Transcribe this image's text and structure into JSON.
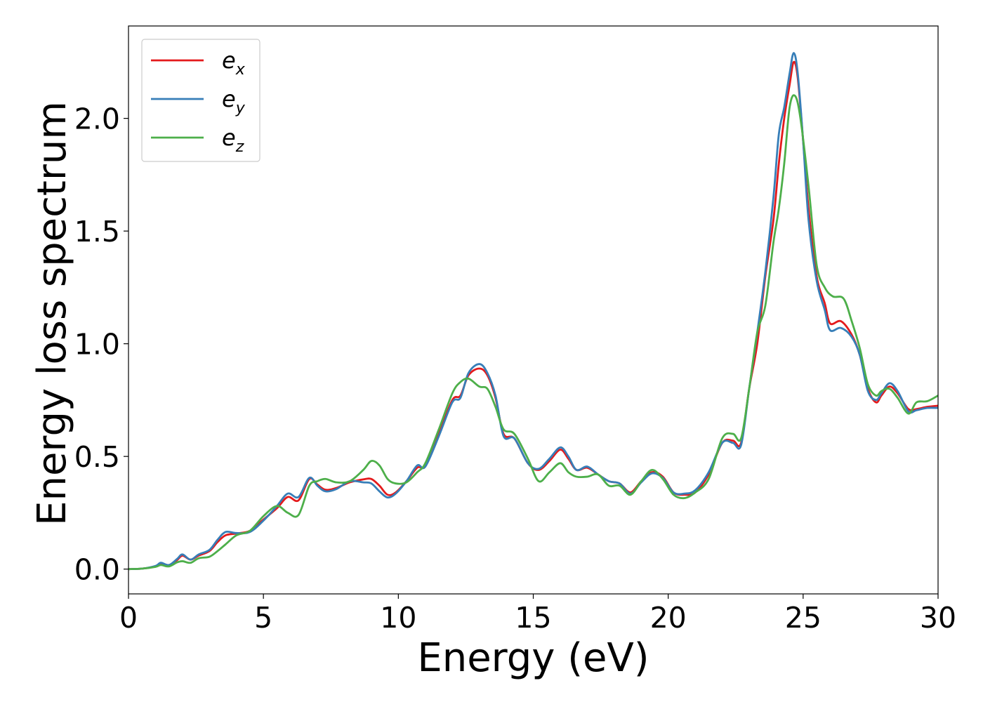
{
  "chart_data": {
    "type": "line",
    "title": "",
    "xlabel": "Energy (eV)",
    "ylabel": "Energy loss spectrum",
    "xlim": [
      0,
      30
    ],
    "ylim": [
      -0.11,
      2.41
    ],
    "xticks": [
      0,
      5,
      10,
      15,
      20,
      25,
      30
    ],
    "xtick_labels": [
      "0",
      "5",
      "10",
      "15",
      "20",
      "25",
      "30"
    ],
    "yticks": [
      0.0,
      0.5,
      1.0,
      1.5,
      2.0
    ],
    "ytick_labels": [
      "0.0",
      "0.5",
      "1.0",
      "1.5",
      "2.0"
    ],
    "grid": false,
    "legend_position": "top-left",
    "series": [
      {
        "name": "e",
        "subscript": "x",
        "color": "#e41a1c",
        "points": [
          [
            0,
            0
          ],
          [
            0.5,
            0.002
          ],
          [
            1.0,
            0.012
          ],
          [
            1.2,
            0.025
          ],
          [
            1.5,
            0.018
          ],
          [
            1.8,
            0.04
          ],
          [
            2.0,
            0.06
          ],
          [
            2.3,
            0.042
          ],
          [
            2.6,
            0.06
          ],
          [
            3.0,
            0.08
          ],
          [
            3.3,
            0.12
          ],
          [
            3.6,
            0.15
          ],
          [
            4.0,
            0.158
          ],
          [
            4.5,
            0.17
          ],
          [
            5.0,
            0.22
          ],
          [
            5.5,
            0.27
          ],
          [
            5.9,
            0.32
          ],
          [
            6.3,
            0.305
          ],
          [
            6.7,
            0.4
          ],
          [
            7.0,
            0.375
          ],
          [
            7.3,
            0.352
          ],
          [
            7.7,
            0.36
          ],
          [
            8.2,
            0.385
          ],
          [
            8.7,
            0.398
          ],
          [
            9.0,
            0.4
          ],
          [
            9.3,
            0.37
          ],
          [
            9.6,
            0.33
          ],
          [
            9.9,
            0.34
          ],
          [
            10.3,
            0.39
          ],
          [
            10.7,
            0.45
          ],
          [
            11.0,
            0.46
          ],
          [
            11.5,
            0.6
          ],
          [
            12.0,
            0.75
          ],
          [
            12.3,
            0.77
          ],
          [
            12.6,
            0.86
          ],
          [
            13.0,
            0.89
          ],
          [
            13.3,
            0.86
          ],
          [
            13.6,
            0.76
          ],
          [
            13.9,
            0.6
          ],
          [
            14.3,
            0.58
          ],
          [
            14.8,
            0.47
          ],
          [
            15.2,
            0.44
          ],
          [
            15.6,
            0.48
          ],
          [
            16.0,
            0.53
          ],
          [
            16.3,
            0.49
          ],
          [
            16.6,
            0.44
          ],
          [
            17.0,
            0.45
          ],
          [
            17.4,
            0.42
          ],
          [
            17.8,
            0.39
          ],
          [
            18.2,
            0.38
          ],
          [
            18.6,
            0.34
          ],
          [
            19.0,
            0.39
          ],
          [
            19.4,
            0.43
          ],
          [
            19.8,
            0.41
          ],
          [
            20.2,
            0.34
          ],
          [
            20.6,
            0.33
          ],
          [
            21.0,
            0.34
          ],
          [
            21.5,
            0.42
          ],
          [
            22.0,
            0.56
          ],
          [
            22.4,
            0.57
          ],
          [
            22.7,
            0.56
          ],
          [
            23.0,
            0.8
          ],
          [
            23.3,
            1.0
          ],
          [
            23.6,
            1.3
          ],
          [
            23.9,
            1.55
          ],
          [
            24.1,
            1.8
          ],
          [
            24.3,
            2.0
          ],
          [
            24.5,
            2.15
          ],
          [
            24.65,
            2.25
          ],
          [
            24.8,
            2.18
          ],
          [
            25.0,
            1.9
          ],
          [
            25.2,
            1.6
          ],
          [
            25.5,
            1.3
          ],
          [
            25.8,
            1.18
          ],
          [
            26.0,
            1.09
          ],
          [
            26.4,
            1.1
          ],
          [
            26.8,
            1.04
          ],
          [
            27.1,
            0.95
          ],
          [
            27.4,
            0.8
          ],
          [
            27.7,
            0.74
          ],
          [
            27.9,
            0.77
          ],
          [
            28.2,
            0.81
          ],
          [
            28.5,
            0.78
          ],
          [
            28.9,
            0.71
          ],
          [
            29.2,
            0.71
          ],
          [
            29.6,
            0.72
          ],
          [
            30.0,
            0.725
          ]
        ]
      },
      {
        "name": "e",
        "subscript": "y",
        "color": "#377eb8",
        "points": [
          [
            0,
            0
          ],
          [
            0.5,
            0.002
          ],
          [
            1.0,
            0.014
          ],
          [
            1.2,
            0.028
          ],
          [
            1.5,
            0.018
          ],
          [
            1.8,
            0.045
          ],
          [
            2.0,
            0.065
          ],
          [
            2.3,
            0.042
          ],
          [
            2.6,
            0.065
          ],
          [
            3.0,
            0.085
          ],
          [
            3.3,
            0.13
          ],
          [
            3.6,
            0.165
          ],
          [
            4.0,
            0.16
          ],
          [
            4.5,
            0.165
          ],
          [
            5.0,
            0.215
          ],
          [
            5.5,
            0.28
          ],
          [
            5.9,
            0.335
          ],
          [
            6.3,
            0.32
          ],
          [
            6.7,
            0.405
          ],
          [
            7.0,
            0.37
          ],
          [
            7.3,
            0.345
          ],
          [
            7.7,
            0.355
          ],
          [
            8.2,
            0.39
          ],
          [
            8.7,
            0.385
          ],
          [
            9.0,
            0.38
          ],
          [
            9.3,
            0.345
          ],
          [
            9.6,
            0.318
          ],
          [
            9.9,
            0.335
          ],
          [
            10.3,
            0.39
          ],
          [
            10.7,
            0.46
          ],
          [
            11.0,
            0.455
          ],
          [
            11.5,
            0.59
          ],
          [
            12.0,
            0.74
          ],
          [
            12.3,
            0.76
          ],
          [
            12.6,
            0.87
          ],
          [
            13.0,
            0.91
          ],
          [
            13.3,
            0.87
          ],
          [
            13.6,
            0.77
          ],
          [
            13.9,
            0.59
          ],
          [
            14.3,
            0.58
          ],
          [
            14.8,
            0.47
          ],
          [
            15.2,
            0.445
          ],
          [
            15.6,
            0.49
          ],
          [
            16.0,
            0.54
          ],
          [
            16.3,
            0.5
          ],
          [
            16.6,
            0.44
          ],
          [
            17.0,
            0.455
          ],
          [
            17.4,
            0.42
          ],
          [
            17.8,
            0.39
          ],
          [
            18.2,
            0.38
          ],
          [
            18.6,
            0.335
          ],
          [
            19.0,
            0.385
          ],
          [
            19.4,
            0.425
          ],
          [
            19.8,
            0.405
          ],
          [
            20.2,
            0.34
          ],
          [
            20.6,
            0.335
          ],
          [
            21.0,
            0.35
          ],
          [
            21.5,
            0.43
          ],
          [
            22.0,
            0.56
          ],
          [
            22.4,
            0.56
          ],
          [
            22.7,
            0.55
          ],
          [
            23.0,
            0.8
          ],
          [
            23.3,
            1.05
          ],
          [
            23.6,
            1.32
          ],
          [
            23.9,
            1.65
          ],
          [
            24.1,
            1.93
          ],
          [
            24.3,
            2.05
          ],
          [
            24.5,
            2.2
          ],
          [
            24.65,
            2.29
          ],
          [
            24.8,
            2.2
          ],
          [
            25.0,
            1.9
          ],
          [
            25.2,
            1.55
          ],
          [
            25.5,
            1.28
          ],
          [
            25.8,
            1.15
          ],
          [
            26.0,
            1.06
          ],
          [
            26.4,
            1.07
          ],
          [
            26.8,
            1.03
          ],
          [
            27.1,
            0.95
          ],
          [
            27.4,
            0.79
          ],
          [
            27.7,
            0.75
          ],
          [
            27.9,
            0.78
          ],
          [
            28.2,
            0.825
          ],
          [
            28.5,
            0.79
          ],
          [
            28.9,
            0.7
          ],
          [
            29.2,
            0.705
          ],
          [
            29.6,
            0.715
          ],
          [
            30.0,
            0.715
          ]
        ]
      },
      {
        "name": "e",
        "subscript": "z",
        "color": "#4daf4a",
        "points": [
          [
            0,
            0
          ],
          [
            0.5,
            0.002
          ],
          [
            1.0,
            0.01
          ],
          [
            1.2,
            0.018
          ],
          [
            1.5,
            0.012
          ],
          [
            1.8,
            0.03
          ],
          [
            2.0,
            0.035
          ],
          [
            2.3,
            0.028
          ],
          [
            2.6,
            0.048
          ],
          [
            3.0,
            0.055
          ],
          [
            3.3,
            0.08
          ],
          [
            3.6,
            0.11
          ],
          [
            4.0,
            0.15
          ],
          [
            4.5,
            0.17
          ],
          [
            5.0,
            0.235
          ],
          [
            5.5,
            0.28
          ],
          [
            5.9,
            0.25
          ],
          [
            6.3,
            0.24
          ],
          [
            6.7,
            0.37
          ],
          [
            7.0,
            0.39
          ],
          [
            7.3,
            0.4
          ],
          [
            7.7,
            0.385
          ],
          [
            8.2,
            0.39
          ],
          [
            8.7,
            0.44
          ],
          [
            9.0,
            0.48
          ],
          [
            9.3,
            0.46
          ],
          [
            9.6,
            0.4
          ],
          [
            9.9,
            0.38
          ],
          [
            10.3,
            0.385
          ],
          [
            10.7,
            0.43
          ],
          [
            11.0,
            0.47
          ],
          [
            11.5,
            0.62
          ],
          [
            12.0,
            0.78
          ],
          [
            12.3,
            0.83
          ],
          [
            12.6,
            0.845
          ],
          [
            13.0,
            0.81
          ],
          [
            13.3,
            0.8
          ],
          [
            13.6,
            0.72
          ],
          [
            13.9,
            0.62
          ],
          [
            14.3,
            0.6
          ],
          [
            14.8,
            0.49
          ],
          [
            15.2,
            0.39
          ],
          [
            15.6,
            0.43
          ],
          [
            16.0,
            0.47
          ],
          [
            16.3,
            0.43
          ],
          [
            16.6,
            0.41
          ],
          [
            17.0,
            0.41
          ],
          [
            17.4,
            0.42
          ],
          [
            17.8,
            0.37
          ],
          [
            18.2,
            0.37
          ],
          [
            18.6,
            0.33
          ],
          [
            19.0,
            0.39
          ],
          [
            19.4,
            0.44
          ],
          [
            19.8,
            0.4
          ],
          [
            20.2,
            0.33
          ],
          [
            20.6,
            0.315
          ],
          [
            21.0,
            0.34
          ],
          [
            21.5,
            0.4
          ],
          [
            22.0,
            0.58
          ],
          [
            22.4,
            0.6
          ],
          [
            22.7,
            0.58
          ],
          [
            23.0,
            0.8
          ],
          [
            23.3,
            1.05
          ],
          [
            23.6,
            1.17
          ],
          [
            23.9,
            1.45
          ],
          [
            24.1,
            1.6
          ],
          [
            24.3,
            1.8
          ],
          [
            24.5,
            2.05
          ],
          [
            24.7,
            2.1
          ],
          [
            24.9,
            2.0
          ],
          [
            25.2,
            1.7
          ],
          [
            25.5,
            1.35
          ],
          [
            25.8,
            1.25
          ],
          [
            26.1,
            1.21
          ],
          [
            26.5,
            1.2
          ],
          [
            26.8,
            1.1
          ],
          [
            27.1,
            0.98
          ],
          [
            27.4,
            0.82
          ],
          [
            27.7,
            0.77
          ],
          [
            27.9,
            0.79
          ],
          [
            28.2,
            0.8
          ],
          [
            28.5,
            0.76
          ],
          [
            28.9,
            0.69
          ],
          [
            29.2,
            0.74
          ],
          [
            29.6,
            0.745
          ],
          [
            30.0,
            0.77
          ]
        ]
      }
    ]
  }
}
